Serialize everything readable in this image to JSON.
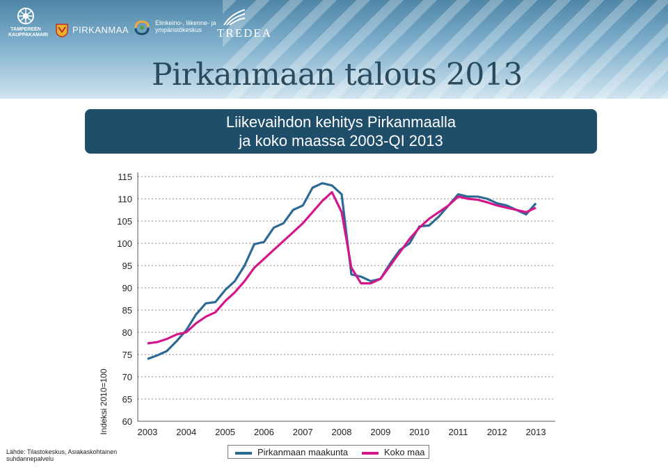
{
  "header": {
    "title": "Pirkanmaan talous 2013",
    "logos": {
      "tampere_line1": "TAMPEREEN",
      "tampere_line2": "KAUPPAKAMARI",
      "pirkanmaa": "PIRKANMAA",
      "ely_line1": "Elinkeino-, liikenne- ja",
      "ely_line2": "ympäristökeskus",
      "tredea": "TREDEA"
    }
  },
  "subtitle": {
    "line1": "Liikevaihdon kehitys Pirkanmaalla",
    "line2": "ja koko maassa 2003-QI 2013"
  },
  "source": {
    "line1": "Lähde: Tilastokeskus, Asiakaskohtainen",
    "line2": "suhdannepalvelu"
  },
  "legend": {
    "series1": "Pirkanmaan maakunta",
    "series2": "Koko maa"
  },
  "colors": {
    "pirkanmaa": "#2d6a93",
    "koko_maa": "#d4168a",
    "header_dark": "#1f4e6b"
  },
  "chart_data": {
    "type": "line",
    "ylabel": "Indeksi 2010=100",
    "xlabel": "",
    "ylim": [
      60,
      115
    ],
    "yticks": [
      60,
      65,
      70,
      75,
      80,
      85,
      90,
      95,
      100,
      105,
      110,
      115
    ],
    "xticks": [
      "2003",
      "2004",
      "2005",
      "2006",
      "2007",
      "2008",
      "2009",
      "2010",
      "2011",
      "2012",
      "2013"
    ],
    "grid": "horizontal dotted",
    "legend_position": "bottom",
    "x": [
      2003.0,
      2003.25,
      2003.5,
      2003.75,
      2004.0,
      2004.25,
      2004.5,
      2004.75,
      2005.0,
      2005.25,
      2005.5,
      2005.75,
      2006.0,
      2006.25,
      2006.5,
      2006.75,
      2007.0,
      2007.25,
      2007.5,
      2007.75,
      2008.0,
      2008.25,
      2008.5,
      2008.75,
      2009.0,
      2009.25,
      2009.5,
      2009.75,
      2010.0,
      2010.25,
      2010.5,
      2010.75,
      2011.0,
      2011.25,
      2011.5,
      2011.75,
      2012.0,
      2012.25,
      2012.5,
      2012.75,
      2013.0
    ],
    "series": [
      {
        "name": "Pirkanmaan maakunta",
        "values": [
          74.0,
          74.8,
          75.8,
          78.0,
          80.5,
          84.0,
          86.5,
          86.8,
          89.5,
          91.5,
          95.0,
          99.8,
          100.3,
          103.5,
          104.5,
          107.5,
          108.5,
          112.5,
          113.5,
          113.0,
          111.0,
          93.0,
          92.5,
          91.5,
          92.0,
          95.5,
          98.5,
          100.0,
          103.8,
          104.0,
          106.0,
          108.5,
          111.0,
          110.5,
          110.5,
          110.0,
          109.0,
          108.5,
          107.5,
          106.5,
          109.0
        ]
      },
      {
        "name": "Koko maa",
        "values": [
          77.5,
          77.8,
          78.5,
          79.5,
          80.0,
          82.0,
          83.5,
          84.5,
          87.0,
          89.0,
          91.5,
          94.5,
          96.5,
          98.5,
          100.5,
          102.5,
          104.5,
          107.0,
          109.5,
          111.5,
          107.0,
          94.5,
          91.0,
          91.0,
          92.0,
          95.0,
          98.0,
          101.0,
          103.5,
          105.5,
          107.0,
          108.5,
          110.5,
          110.0,
          109.8,
          109.2,
          108.5,
          108.0,
          107.5,
          107.0,
          108.0
        ]
      }
    ]
  }
}
